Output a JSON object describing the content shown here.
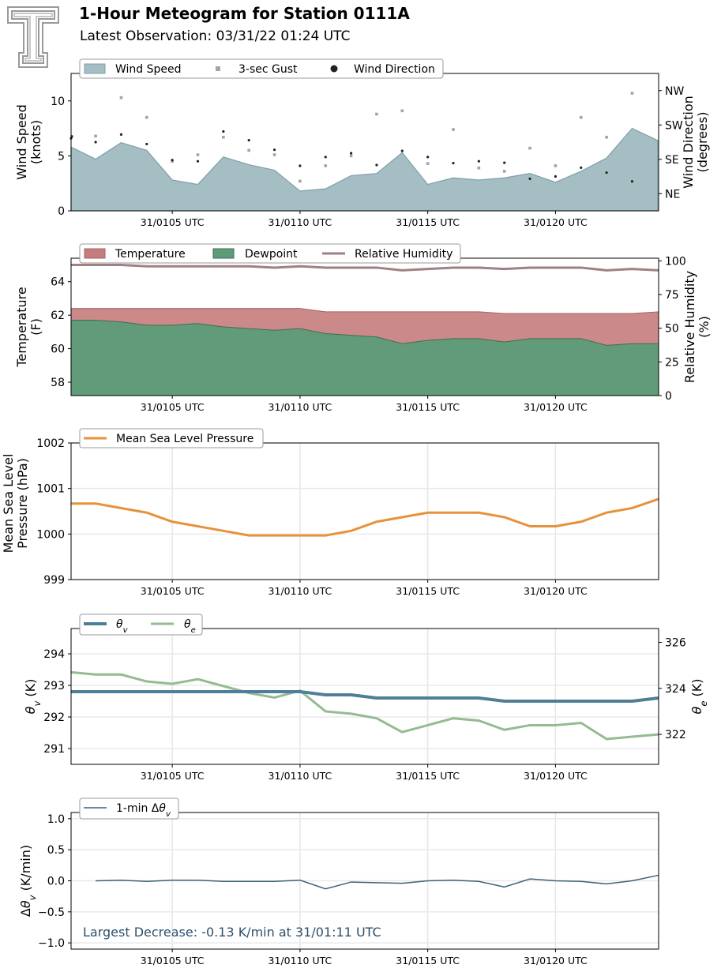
{
  "header": {
    "title": "1-Hour Meteogram for Station 0111A",
    "subtitle": "Latest Observation: 03/31/22 01:24 UTC"
  },
  "colors": {
    "wind_fill": "#a5bec4",
    "wind_line": "#7fa0a8",
    "gust": "#a3a3a8",
    "direction": "#222222",
    "temperature": "#c57c7c",
    "dewpoint": "#5c9c78",
    "rh": "#9e8182",
    "mslp": "#e8913c",
    "theta_v": "#4e7f99",
    "theta_e": "#94bb92",
    "dtheta": "#3d6278",
    "annotation": "#2d4f6b",
    "logo": "#9a9a9a"
  },
  "x_ticks": [
    "31/0105 UTC",
    "31/0110 UTC",
    "31/0115 UTC",
    "31/0120 UTC"
  ],
  "chart_data": [
    {
      "type": "area",
      "panel": "wind",
      "x_minutes": [
        1,
        2,
        3,
        4,
        5,
        6,
        7,
        8,
        9,
        10,
        11,
        12,
        13,
        14,
        15,
        16,
        17,
        18,
        19,
        20,
        21,
        22,
        23,
        24
      ],
      "series": [
        {
          "name": "Wind Speed",
          "values": [
            5.8,
            4.7,
            6.2,
            5.5,
            2.8,
            2.4,
            4.9,
            4.2,
            3.7,
            1.8,
            2.0,
            3.2,
            3.4,
            5.3,
            2.4,
            3.0,
            2.8,
            3.0,
            3.4,
            2.6,
            3.6,
            4.8,
            7.5,
            6.4
          ]
        },
        {
          "name": "3-sec Gust",
          "values": [
            null,
            6.8,
            10.3,
            8.5,
            4.5,
            5.1,
            6.7,
            5.5,
            5.1,
            2.7,
            4.1,
            5.0,
            8.8,
            9.1,
            4.3,
            7.4,
            3.9,
            3.6,
            5.7,
            4.1,
            8.5,
            6.7,
            10.7,
            null
          ]
        },
        {
          "name": "Wind Direction",
          "values": [
            190,
            180,
            200,
            175,
            133,
            130,
            208,
            185,
            160,
            118,
            141,
            151,
            120,
            157,
            141,
            125,
            130,
            126,
            84,
            90,
            113,
            100,
            77,
            null
          ]
        }
      ],
      "ylabel": "Wind Speed\n(knots)",
      "y2label": "Wind Direction\n(degrees)",
      "ylim": [
        0,
        12.5
      ],
      "yticks": [
        0,
        5,
        10
      ],
      "y2lim": [
        0,
        360
      ],
      "y2ticks": [
        45,
        135,
        225,
        315
      ],
      "y2ticklabels": [
        "NE",
        "SE",
        "SW",
        "NW"
      ],
      "legend": "top-left"
    },
    {
      "type": "area",
      "panel": "temperature",
      "x_minutes": [
        1,
        2,
        3,
        4,
        5,
        6,
        7,
        8,
        9,
        10,
        11,
        12,
        13,
        14,
        15,
        16,
        17,
        18,
        19,
        20,
        21,
        22,
        23,
        24
      ],
      "series": [
        {
          "name": "Temperature",
          "values": [
            62.4,
            62.4,
            62.4,
            62.4,
            62.4,
            62.4,
            62.4,
            62.4,
            62.4,
            62.4,
            62.2,
            62.2,
            62.2,
            62.2,
            62.2,
            62.2,
            62.2,
            62.1,
            62.1,
            62.1,
            62.1,
            62.1,
            62.1,
            62.2
          ]
        },
        {
          "name": "Dewpoint",
          "values": [
            61.7,
            61.7,
            61.6,
            61.4,
            61.4,
            61.5,
            61.3,
            61.2,
            61.1,
            61.2,
            60.9,
            60.8,
            60.7,
            60.3,
            60.5,
            60.6,
            60.6,
            60.4,
            60.6,
            60.6,
            60.6,
            60.2,
            60.3,
            60.3
          ]
        },
        {
          "name": "Relative Humidity",
          "values": [
            97,
            97,
            97,
            96,
            96,
            96,
            96,
            96,
            95,
            96,
            95,
            95,
            95,
            93,
            94,
            95,
            95,
            94,
            95,
            95,
            95,
            93,
            94,
            93
          ]
        }
      ],
      "ylabel": "Temperature\n(F)",
      "y2label": "Relative Humidity\n(%)",
      "ylim": [
        57.2,
        65.4
      ],
      "yticks": [
        58,
        60,
        62,
        64
      ],
      "y2lim": [
        0,
        102
      ],
      "y2ticks": [
        0,
        25,
        50,
        75,
        100
      ],
      "legend": "top-left"
    },
    {
      "type": "line",
      "panel": "pressure",
      "x_minutes": [
        1,
        2,
        3,
        4,
        5,
        6,
        7,
        8,
        9,
        10,
        11,
        12,
        13,
        14,
        15,
        16,
        17,
        18,
        19,
        20,
        21,
        22,
        23,
        24
      ],
      "series": [
        {
          "name": "Mean Sea Level Pressure",
          "values": [
            1000.67,
            1000.67,
            1000.57,
            1000.47,
            1000.27,
            1000.17,
            1000.07,
            999.97,
            999.97,
            999.97,
            999.97,
            1000.07,
            1000.27,
            1000.37,
            1000.47,
            1000.47,
            1000.47,
            1000.37,
            1000.17,
            1000.17,
            1000.27,
            1000.47,
            1000.57,
            1000.77
          ]
        }
      ],
      "ylabel": "Mean Sea Level\nPressure (hPa)",
      "ylim": [
        999,
        1002
      ],
      "yticks": [
        999,
        1000,
        1001,
        1002
      ],
      "legend": "top-left"
    },
    {
      "type": "line",
      "panel": "theta",
      "x_minutes": [
        1,
        2,
        3,
        4,
        5,
        6,
        7,
        8,
        9,
        10,
        11,
        12,
        13,
        14,
        15,
        16,
        17,
        18,
        19,
        20,
        21,
        22,
        23,
        24
      ],
      "series": [
        {
          "name": "θv",
          "axis": "left",
          "values": [
            292.8,
            292.8,
            292.8,
            292.8,
            292.8,
            292.8,
            292.8,
            292.8,
            292.8,
            292.8,
            292.7,
            292.7,
            292.6,
            292.6,
            292.6,
            292.6,
            292.6,
            292.5,
            292.5,
            292.5,
            292.5,
            292.5,
            292.5,
            292.6
          ]
        },
        {
          "name": "θe",
          "axis": "right",
          "values": [
            324.7,
            324.6,
            324.6,
            324.3,
            324.2,
            324.4,
            324.1,
            323.8,
            323.6,
            323.9,
            323.0,
            322.9,
            322.7,
            322.1,
            322.4,
            322.7,
            322.6,
            322.2,
            322.4,
            322.4,
            322.5,
            321.8,
            321.9,
            322.0
          ]
        }
      ],
      "ylabel": "θv (K)",
      "y2label": "θe (K)",
      "ylim": [
        290.5,
        294.8
      ],
      "yticks": [
        291,
        292,
        293,
        294
      ],
      "y2lim": [
        320.7,
        326.6
      ],
      "y2ticks": [
        322,
        324,
        326
      ],
      "legend": "top-left"
    },
    {
      "type": "line",
      "panel": "dtheta",
      "x_minutes": [
        2,
        3,
        4,
        5,
        6,
        7,
        8,
        9,
        10,
        11,
        12,
        13,
        14,
        15,
        16,
        17,
        18,
        19,
        20,
        21,
        22,
        23,
        24
      ],
      "series": [
        {
          "name": "1-min Δθv",
          "values": [
            0.0,
            0.01,
            -0.01,
            0.01,
            0.01,
            -0.01,
            -0.01,
            -0.01,
            0.01,
            -0.13,
            -0.02,
            -0.03,
            -0.04,
            0.0,
            0.01,
            -0.01,
            -0.1,
            0.03,
            0.0,
            -0.01,
            -0.05,
            0.0,
            0.09
          ]
        }
      ],
      "ylabel": "Δθv (K/min)",
      "ylim": [
        -1.1,
        1.1
      ],
      "yticks": [
        -1.0,
        -0.5,
        0.0,
        0.5,
        1.0
      ],
      "annotation": "Largest Decrease: -0.13 K/min at 31/01:11 UTC",
      "legend": "top-left"
    }
  ]
}
